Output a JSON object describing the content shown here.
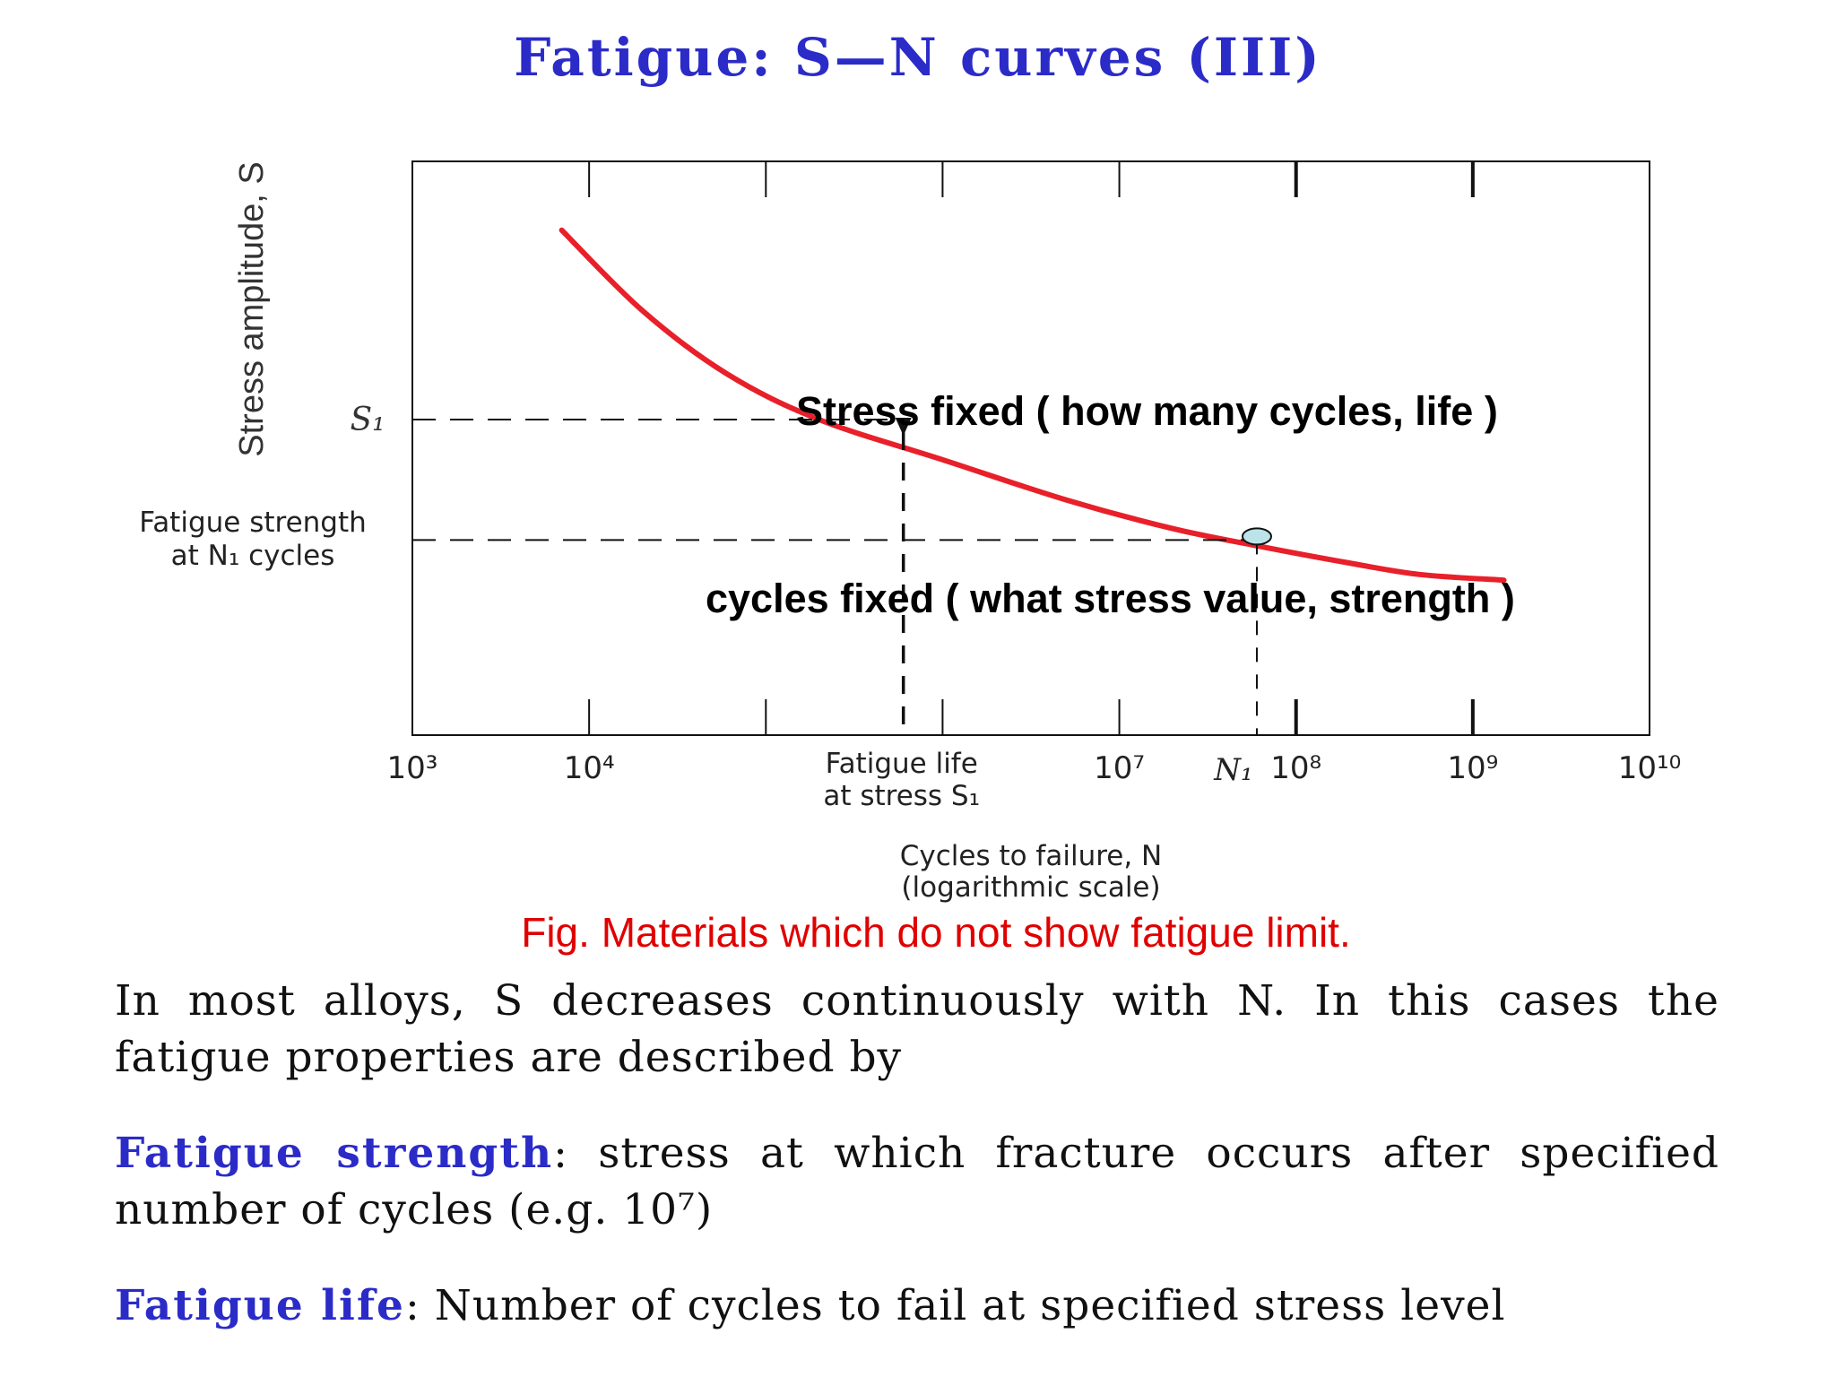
{
  "title": "Fatigue: S—N curves (III)",
  "caption": "Fig. Materials which do not show fatigue limit.",
  "paragraphs": {
    "p1": "In most alloys, S decreases continuously with N.  In this cases the fatigue properties are described by",
    "p2_term": "Fatigue strength",
    "p2_sep": ":  ",
    "p2_text": "stress at which fracture occurs after specified number of cycles (e.g. 10⁷)",
    "p3_term": "Fatigue life",
    "p3_sep": ":  ",
    "p3_text": "Number of cycles to fail at specified stress level"
  },
  "chart_data": {
    "type": "line",
    "xscale": "log",
    "xlim": [
      1000,
      10000000000
    ],
    "x_tick_exponents": [
      3,
      4,
      5,
      6,
      7,
      8,
      9,
      10
    ],
    "x_tick_labels": [
      "10³",
      "10⁴",
      "",
      "",
      "10⁷",
      "10⁸",
      "10⁹",
      "10¹⁰"
    ],
    "xlabel_line1": "Cycles to failure, N",
    "xlabel_line2": "(logarithmic scale)",
    "ylabel": "Stress amplitude, S",
    "ylim": [
      0,
      1
    ],
    "series": [
      {
        "color": "#e8202a",
        "x": [
          7000,
          20000,
          60000,
          200000,
          1000000,
          5000000,
          20000000,
          60000000,
          200000000,
          500000000,
          1500000000
        ],
        "y": [
          0.88,
          0.74,
          0.63,
          0.55,
          0.48,
          0.41,
          0.36,
          0.33,
          0.3,
          0.28,
          0.27
        ]
      }
    ],
    "s1": {
      "label": "S₁",
      "y": 0.55
    },
    "fatigue_strength": {
      "label_line1": "Fatigue strength",
      "label_line2": "at N₁ cycles",
      "y": 0.34
    },
    "fatigue_life_x": 600000,
    "fatigue_life_label_line1": "Fatigue life",
    "fatigue_life_label_line2": "at stress S₁",
    "n1": {
      "label": "N₁",
      "x": 60000000
    },
    "annotations": [
      "Stress fixed ( how many cycles, life )",
      "cycles fixed ( what stress value, strength  )"
    ],
    "marker_color": "#bde3ea"
  }
}
